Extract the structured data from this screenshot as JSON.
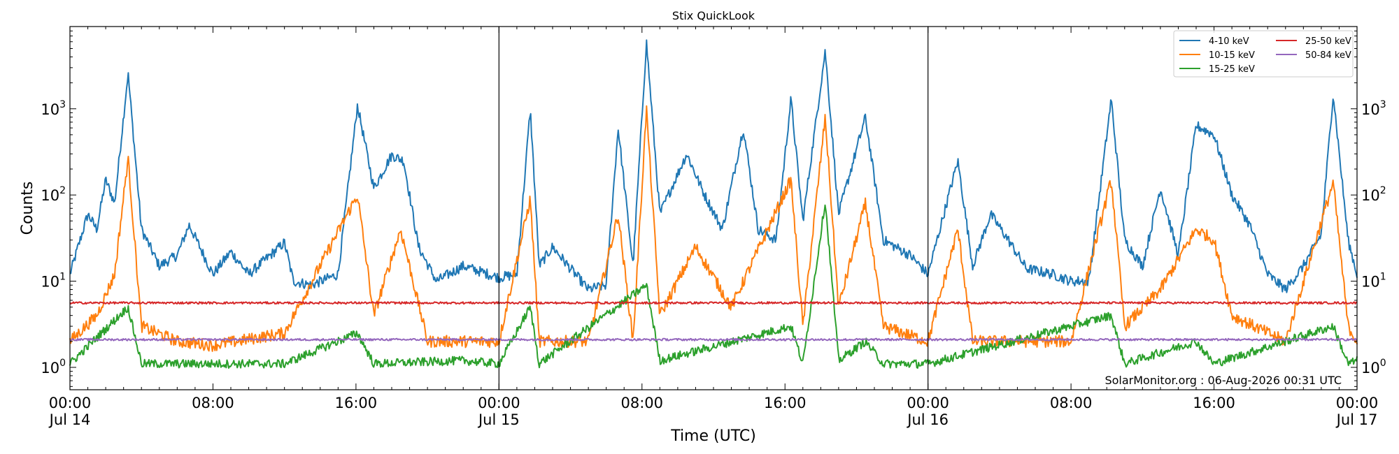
{
  "chart_data": {
    "type": "line",
    "title": "Stix QuickLook",
    "xlabel": "Time (UTC)",
    "ylabel": "Counts",
    "yscale": "log",
    "ylim": [
      0.55,
      9000
    ],
    "xlim": [
      "2026-07-14T00:00",
      "2026-07-17T00:00"
    ],
    "x_ticks": [
      {
        "value": "2026-07-14T00:00",
        "line1": "00:00",
        "line2": "Jul 14"
      },
      {
        "value": "2026-07-14T08:00",
        "line1": "08:00",
        "line2": ""
      },
      {
        "value": "2026-07-14T16:00",
        "line1": "16:00",
        "line2": ""
      },
      {
        "value": "2026-07-15T00:00",
        "line1": "00:00",
        "line2": "Jul 15"
      },
      {
        "value": "2026-07-15T08:00",
        "line1": "08:00",
        "line2": ""
      },
      {
        "value": "2026-07-15T16:00",
        "line1": "16:00",
        "line2": ""
      },
      {
        "value": "2026-07-16T00:00",
        "line1": "00:00",
        "line2": "Jul 16"
      },
      {
        "value": "2026-07-16T08:00",
        "line1": "08:00",
        "line2": ""
      },
      {
        "value": "2026-07-16T16:00",
        "line1": "16:00",
        "line2": ""
      },
      {
        "value": "2026-07-17T00:00",
        "line1": "00:00",
        "line2": "Jul 17"
      }
    ],
    "y_ticks": [
      {
        "value": 1,
        "base": "10",
        "exp": "0"
      },
      {
        "value": 10,
        "base": "10",
        "exp": "1"
      },
      {
        "value": 100,
        "base": "10",
        "exp": "2"
      },
      {
        "value": 1000,
        "base": "10",
        "exp": "3"
      }
    ],
    "day_boundaries": [
      "2026-07-15T00:00",
      "2026-07-16T00:00"
    ],
    "legend_position": "top-right",
    "grid": false,
    "annotation": "SolarMonitor.org : 06-Aug-2026 00:31 UTC",
    "series": [
      {
        "name": "4-10 keV",
        "color": "#1f77b4",
        "points": [
          [
            "2026-07-14T00:00",
            12
          ],
          [
            "2026-07-14T01:00",
            60
          ],
          [
            "2026-07-14T01:30",
            40
          ],
          [
            "2026-07-14T02:00",
            150
          ],
          [
            "2026-07-14T02:30",
            80
          ],
          [
            "2026-07-14T03:15",
            2600
          ],
          [
            "2026-07-14T04:00",
            40
          ],
          [
            "2026-07-14T05:00",
            15
          ],
          [
            "2026-07-14T06:00",
            20
          ],
          [
            "2026-07-14T06:40",
            45
          ],
          [
            "2026-07-14T08:00",
            12
          ],
          [
            "2026-07-14T09:00",
            22
          ],
          [
            "2026-07-14T10:00",
            12
          ],
          [
            "2026-07-14T12:00",
            28
          ],
          [
            "2026-07-14T12:30",
            10
          ],
          [
            "2026-07-14T13:30",
            9
          ],
          [
            "2026-07-14T15:00",
            12
          ],
          [
            "2026-07-14T16:05",
            1100
          ],
          [
            "2026-07-14T17:00",
            120
          ],
          [
            "2026-07-14T18:00",
            290
          ],
          [
            "2026-07-14T18:40",
            250
          ],
          [
            "2026-07-14T19:30",
            25
          ],
          [
            "2026-07-14T20:30",
            10
          ],
          [
            "2026-07-14T22:00",
            15
          ],
          [
            "2026-07-15T00:00",
            11
          ],
          [
            "2026-07-15T01:00",
            12
          ],
          [
            "2026-07-15T01:45",
            1000
          ],
          [
            "2026-07-15T02:15",
            15
          ],
          [
            "2026-07-15T03:00",
            25
          ],
          [
            "2026-07-15T04:00",
            14
          ],
          [
            "2026-07-15T05:00",
            8
          ],
          [
            "2026-07-15T06:00",
            9
          ],
          [
            "2026-07-15T06:40",
            600
          ],
          [
            "2026-07-15T07:30",
            15
          ],
          [
            "2026-07-15T08:15",
            6000
          ],
          [
            "2026-07-15T09:00",
            60
          ],
          [
            "2026-07-15T10:30",
            300
          ],
          [
            "2026-07-15T11:30",
            100
          ],
          [
            "2026-07-15T12:30",
            40
          ],
          [
            "2026-07-15T13:40",
            600
          ],
          [
            "2026-07-15T14:30",
            40
          ],
          [
            "2026-07-15T15:30",
            30
          ],
          [
            "2026-07-15T16:20",
            1300
          ],
          [
            "2026-07-15T17:00",
            50
          ],
          [
            "2026-07-15T18:15",
            4700
          ],
          [
            "2026-07-15T19:00",
            60
          ],
          [
            "2026-07-15T20:30",
            800
          ],
          [
            "2026-07-15T21:30",
            30
          ],
          [
            "2026-07-15T23:00",
            20
          ],
          [
            "2026-07-16T00:00",
            12
          ],
          [
            "2026-07-16T01:40",
            250
          ],
          [
            "2026-07-16T02:30",
            15
          ],
          [
            "2026-07-16T03:30",
            60
          ],
          [
            "2026-07-16T04:30",
            30
          ],
          [
            "2026-07-16T05:30",
            14
          ],
          [
            "2026-07-16T07:00",
            12
          ],
          [
            "2026-07-16T08:00",
            10
          ],
          [
            "2026-07-16T09:00",
            10
          ],
          [
            "2026-07-16T10:15",
            1300
          ],
          [
            "2026-07-16T11:00",
            30
          ],
          [
            "2026-07-16T12:00",
            15
          ],
          [
            "2026-07-16T13:00",
            120
          ],
          [
            "2026-07-16T14:00",
            20
          ],
          [
            "2026-07-16T15:00",
            640
          ],
          [
            "2026-07-16T16:00",
            500
          ],
          [
            "2026-07-16T17:00",
            100
          ],
          [
            "2026-07-16T18:00",
            45
          ],
          [
            "2026-07-16T19:00",
            12
          ],
          [
            "2026-07-16T20:00",
            8
          ],
          [
            "2026-07-16T21:00",
            15
          ],
          [
            "2026-07-16T22:00",
            35
          ],
          [
            "2026-07-16T22:40",
            1500
          ],
          [
            "2026-07-16T23:30",
            30
          ],
          [
            "2026-07-17T00:00",
            12
          ]
        ]
      },
      {
        "name": "10-15 keV",
        "color": "#ff7f0e",
        "points": [
          [
            "2026-07-14T00:00",
            2
          ],
          [
            "2026-07-14T01:30",
            4
          ],
          [
            "2026-07-14T02:30",
            12
          ],
          [
            "2026-07-14T03:15",
            270
          ],
          [
            "2026-07-14T04:00",
            3
          ],
          [
            "2026-07-14T06:00",
            2
          ],
          [
            "2026-07-14T08:00",
            1.8
          ],
          [
            "2026-07-14T12:00",
            2.5
          ],
          [
            "2026-07-14T16:05",
            100
          ],
          [
            "2026-07-14T17:00",
            4
          ],
          [
            "2026-07-14T18:30",
            40
          ],
          [
            "2026-07-14T20:00",
            2
          ],
          [
            "2026-07-14T22:00",
            2
          ],
          [
            "2026-07-15T00:00",
            2
          ],
          [
            "2026-07-15T01:45",
            90
          ],
          [
            "2026-07-15T02:15",
            2
          ],
          [
            "2026-07-15T05:00",
            2
          ],
          [
            "2026-07-15T06:40",
            60
          ],
          [
            "2026-07-15T07:30",
            2
          ],
          [
            "2026-07-15T08:15",
            1000
          ],
          [
            "2026-07-15T09:00",
            4
          ],
          [
            "2026-07-15T11:00",
            25
          ],
          [
            "2026-07-15T13:00",
            5
          ],
          [
            "2026-07-15T16:20",
            150
          ],
          [
            "2026-07-15T17:00",
            3
          ],
          [
            "2026-07-15T18:15",
            800
          ],
          [
            "2026-07-15T19:00",
            5
          ],
          [
            "2026-07-15T20:30",
            80
          ],
          [
            "2026-07-15T21:30",
            3
          ],
          [
            "2026-07-16T00:00",
            2
          ],
          [
            "2026-07-16T01:40",
            40
          ],
          [
            "2026-07-16T02:30",
            2
          ],
          [
            "2026-07-16T05:00",
            2
          ],
          [
            "2026-07-16T08:00",
            2
          ],
          [
            "2026-07-16T10:15",
            150
          ],
          [
            "2026-07-16T11:00",
            3
          ],
          [
            "2026-07-16T13:00",
            8
          ],
          [
            "2026-07-16T15:00",
            40
          ],
          [
            "2026-07-16T16:00",
            30
          ],
          [
            "2026-07-16T17:00",
            4
          ],
          [
            "2026-07-16T20:00",
            2
          ],
          [
            "2026-07-16T22:40",
            140
          ],
          [
            "2026-07-16T23:30",
            3
          ],
          [
            "2026-07-17T00:00",
            2
          ]
        ]
      },
      {
        "name": "15-25 keV",
        "color": "#2ca02c",
        "points": [
          [
            "2026-07-14T00:00",
            1.1
          ],
          [
            "2026-07-14T03:15",
            5
          ],
          [
            "2026-07-14T04:00",
            1.1
          ],
          [
            "2026-07-14T12:00",
            1.1
          ],
          [
            "2026-07-14T16:05",
            2.5
          ],
          [
            "2026-07-14T17:00",
            1.1
          ],
          [
            "2026-07-14T22:00",
            1.2
          ],
          [
            "2026-07-15T00:00",
            1.1
          ],
          [
            "2026-07-15T01:45",
            5
          ],
          [
            "2026-07-15T02:15",
            1.1
          ],
          [
            "2026-07-15T08:15",
            9
          ],
          [
            "2026-07-15T09:00",
            1.2
          ],
          [
            "2026-07-15T16:20",
            3
          ],
          [
            "2026-07-15T17:00",
            1.1
          ],
          [
            "2026-07-15T18:15",
            85
          ],
          [
            "2026-07-15T19:00",
            1.2
          ],
          [
            "2026-07-15T20:30",
            2
          ],
          [
            "2026-07-15T21:30",
            1.1
          ],
          [
            "2026-07-16T00:00",
            1.1
          ],
          [
            "2026-07-16T10:15",
            4
          ],
          [
            "2026-07-16T11:00",
            1.1
          ],
          [
            "2026-07-16T15:00",
            2
          ],
          [
            "2026-07-16T16:00",
            1.1
          ],
          [
            "2026-07-16T22:40",
            3
          ],
          [
            "2026-07-16T23:30",
            1.1
          ],
          [
            "2026-07-17T00:00",
            1.2
          ]
        ]
      },
      {
        "name": "25-50 keV",
        "color": "#d62728",
        "points": [
          [
            "2026-07-14T00:00",
            5.6
          ],
          [
            "2026-07-17T00:00",
            5.6
          ]
        ]
      },
      {
        "name": "50-84 keV",
        "color": "#9467bd",
        "points": [
          [
            "2026-07-14T00:00",
            2.1
          ],
          [
            "2026-07-17T00:00",
            2.1
          ]
        ]
      }
    ]
  }
}
